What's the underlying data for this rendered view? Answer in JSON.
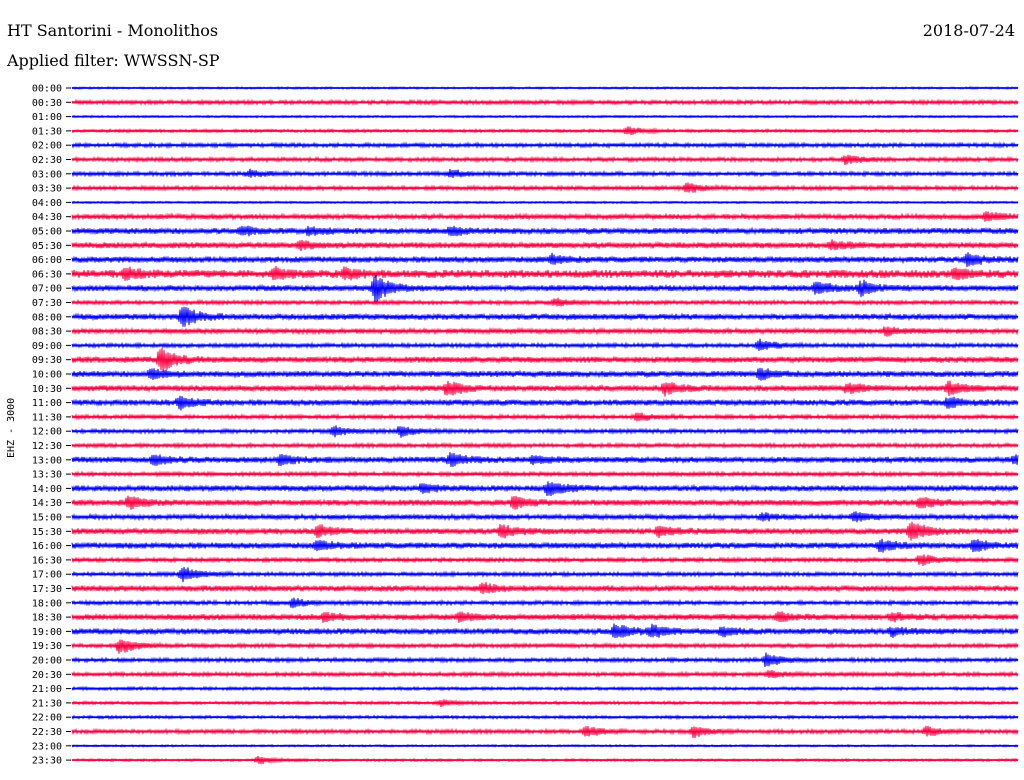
{
  "header": {
    "title": "HT Santorini - Monolithos",
    "date": "2018-07-24",
    "filter": "Applied filter: WWSSN-SP"
  },
  "chart_data": {
    "type": "line",
    "title": "HT Santorini - Monolithos",
    "subtitle": "Applied filter: WWSSN-SP",
    "ylabel": "EHZ - 3000",
    "rows": [
      "00:00",
      "00:30",
      "01:00",
      "01:30",
      "02:00",
      "02:30",
      "03:00",
      "03:30",
      "04:00",
      "04:30",
      "05:00",
      "05:30",
      "06:00",
      "06:30",
      "07:00",
      "07:30",
      "08:00",
      "08:30",
      "09:00",
      "09:30",
      "10:00",
      "10:30",
      "11:00",
      "11:30",
      "12:00",
      "12:30",
      "13:00",
      "13:30",
      "14:00",
      "14:30",
      "15:00",
      "15:30",
      "16:00",
      "16:30",
      "17:00",
      "17:30",
      "18:00",
      "18:30",
      "19:00",
      "19:30",
      "20:00",
      "20:30",
      "21:00",
      "21:30",
      "22:00",
      "22:30",
      "23:00",
      "23:30"
    ],
    "colors": [
      "#0000ff",
      "#ff0040"
    ],
    "noise_levels": [
      1,
      2,
      1,
      1.5,
      2,
      2,
      2,
      2,
      1,
      2.5,
      3,
      3,
      3,
      4,
      3,
      2,
      3,
      2.5,
      2,
      3,
      3,
      3,
      3,
      2,
      2,
      2,
      3,
      2,
      3,
      3,
      2.5,
      3,
      3,
      2,
      2,
      3,
      2,
      3,
      3,
      2,
      2,
      2,
      1.5,
      1.5,
      1.5,
      2,
      1,
      1.2
    ],
    "events": [
      {
        "row": 3,
        "minute": 17.6,
        "amp": 4
      },
      {
        "row": 5,
        "minute": 24.5,
        "amp": 5
      },
      {
        "row": 6,
        "minute": 5.6,
        "amp": 4
      },
      {
        "row": 6,
        "minute": 12.0,
        "amp": 4
      },
      {
        "row": 7,
        "minute": 19.5,
        "amp": 5
      },
      {
        "row": 9,
        "minute": 29.0,
        "amp": 5
      },
      {
        "row": 10,
        "minute": 5.4,
        "amp": 5
      },
      {
        "row": 10,
        "minute": 7.5,
        "amp": 4
      },
      {
        "row": 10,
        "minute": 12.0,
        "amp": 4
      },
      {
        "row": 11,
        "minute": 7.2,
        "amp": 4
      },
      {
        "row": 11,
        "minute": 24.1,
        "amp": 4
      },
      {
        "row": 12,
        "minute": 15.2,
        "amp": 5
      },
      {
        "row": 12,
        "minute": 28.4,
        "amp": 6
      },
      {
        "row": 13,
        "minute": 1.7,
        "amp": 5
      },
      {
        "row": 13,
        "minute": 6.4,
        "amp": 5
      },
      {
        "row": 13,
        "minute": 8.6,
        "amp": 5
      },
      {
        "row": 13,
        "minute": 28.0,
        "amp": 5
      },
      {
        "row": 14,
        "minute": 9.6,
        "amp": 14
      },
      {
        "row": 14,
        "minute": 23.6,
        "amp": 7
      },
      {
        "row": 14,
        "minute": 25.0,
        "amp": 8
      },
      {
        "row": 15,
        "minute": 15.3,
        "amp": 4
      },
      {
        "row": 16,
        "minute": 3.5,
        "amp": 11
      },
      {
        "row": 17,
        "minute": 25.8,
        "amp": 4
      },
      {
        "row": 18,
        "minute": 21.8,
        "amp": 6
      },
      {
        "row": 19,
        "minute": 2.8,
        "amp": 12
      },
      {
        "row": 20,
        "minute": 2.5,
        "amp": 5
      },
      {
        "row": 20,
        "minute": 21.8,
        "amp": 6
      },
      {
        "row": 21,
        "minute": 11.9,
        "amp": 8
      },
      {
        "row": 21,
        "minute": 18.8,
        "amp": 6
      },
      {
        "row": 21,
        "minute": 24.6,
        "amp": 5
      },
      {
        "row": 21,
        "minute": 27.8,
        "amp": 7
      },
      {
        "row": 22,
        "minute": 3.4,
        "amp": 6
      },
      {
        "row": 22,
        "minute": 27.8,
        "amp": 5
      },
      {
        "row": 23,
        "minute": 17.9,
        "amp": 4
      },
      {
        "row": 24,
        "minute": 8.3,
        "amp": 5
      },
      {
        "row": 24,
        "minute": 10.4,
        "amp": 6
      },
      {
        "row": 26,
        "minute": 2.6,
        "amp": 5
      },
      {
        "row": 26,
        "minute": 6.6,
        "amp": 5
      },
      {
        "row": 26,
        "minute": 12.0,
        "amp": 6
      },
      {
        "row": 26,
        "minute": 14.6,
        "amp": 4
      },
      {
        "row": 26,
        "minute": 29.9,
        "amp": 5
      },
      {
        "row": 28,
        "minute": 11.1,
        "amp": 4
      },
      {
        "row": 28,
        "minute": 15.1,
        "amp": 8
      },
      {
        "row": 29,
        "minute": 1.8,
        "amp": 6
      },
      {
        "row": 29,
        "minute": 14.0,
        "amp": 6
      },
      {
        "row": 29,
        "minute": 26.9,
        "amp": 5
      },
      {
        "row": 30,
        "minute": 21.9,
        "amp": 4
      },
      {
        "row": 30,
        "minute": 24.8,
        "amp": 5
      },
      {
        "row": 31,
        "minute": 7.8,
        "amp": 6
      },
      {
        "row": 31,
        "minute": 13.6,
        "amp": 7
      },
      {
        "row": 31,
        "minute": 18.6,
        "amp": 5
      },
      {
        "row": 31,
        "minute": 26.6,
        "amp": 10
      },
      {
        "row": 32,
        "minute": 7.8,
        "amp": 5
      },
      {
        "row": 32,
        "minute": 25.6,
        "amp": 6
      },
      {
        "row": 32,
        "minute": 28.6,
        "amp": 6
      },
      {
        "row": 33,
        "minute": 26.9,
        "amp": 6
      },
      {
        "row": 34,
        "minute": 3.5,
        "amp": 8
      },
      {
        "row": 35,
        "minute": 13.0,
        "amp": 5
      },
      {
        "row": 36,
        "minute": 7.0,
        "amp": 5
      },
      {
        "row": 37,
        "minute": 8.0,
        "amp": 4
      },
      {
        "row": 37,
        "minute": 12.3,
        "amp": 4
      },
      {
        "row": 37,
        "minute": 22.4,
        "amp": 4
      },
      {
        "row": 37,
        "minute": 26.0,
        "amp": 4
      },
      {
        "row": 38,
        "minute": 17.2,
        "amp": 8
      },
      {
        "row": 38,
        "minute": 18.4,
        "amp": 6
      },
      {
        "row": 38,
        "minute": 20.6,
        "amp": 4
      },
      {
        "row": 38,
        "minute": 26.0,
        "amp": 4
      },
      {
        "row": 39,
        "minute": 1.5,
        "amp": 8
      },
      {
        "row": 40,
        "minute": 22.0,
        "amp": 7
      },
      {
        "row": 41,
        "minute": 22.1,
        "amp": 4
      },
      {
        "row": 43,
        "minute": 11.7,
        "amp": 3
      },
      {
        "row": 45,
        "minute": 16.3,
        "amp": 5
      },
      {
        "row": 45,
        "minute": 19.7,
        "amp": 6
      },
      {
        "row": 45,
        "minute": 27.1,
        "amp": 5
      },
      {
        "row": 47,
        "minute": 5.9,
        "amp": 4
      }
    ],
    "grid": false,
    "legend": "none"
  }
}
